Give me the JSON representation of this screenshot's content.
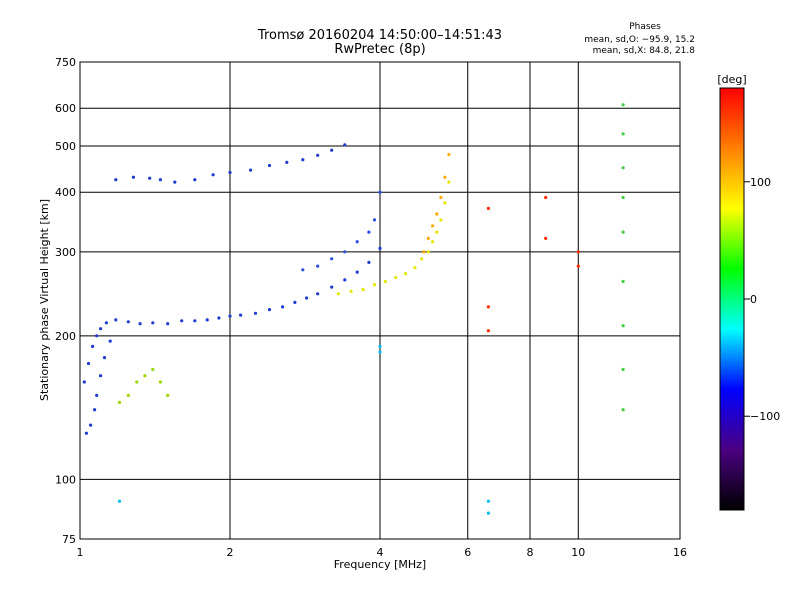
{
  "chart_data": {
    "type": "scatter",
    "title": "Tromsø 20160204 14:50:00–14:51:43",
    "subtitle": "RwPretec (8p)",
    "xlabel": "Frequency [MHz]",
    "ylabel": "Stationary phase Virtual Height [km]",
    "xscale": "log",
    "yscale": "log",
    "xlim": [
      1,
      16
    ],
    "ylim": [
      75,
      750
    ],
    "x_ticks": [
      1,
      2,
      4,
      6,
      8,
      10,
      16
    ],
    "x_tick_labels": [
      "1",
      "2",
      "4",
      "6",
      "8",
      "10",
      "16"
    ],
    "y_ticks": [
      75,
      100,
      200,
      300,
      400,
      500,
      600,
      750
    ],
    "y_tick_labels": [
      "75",
      "100",
      "200",
      "300",
      "400",
      "500",
      "600",
      "750"
    ],
    "grid": true,
    "phase_stats": {
      "heading": "Phases",
      "line_o": "mean, sd,O: −95.9, 15.2",
      "line_x": "mean, sd,X:  84.8, 21.8"
    },
    "colorbar": {
      "label": "[deg]",
      "range": [
        -180,
        180
      ],
      "ticks": [
        100,
        0,
        -100
      ],
      "tick_labels": [
        "100",
        "0",
        "−100"
      ],
      "colors": [
        "#ff0000",
        "#ff8000",
        "#ffff00",
        "#00ff00",
        "#00ffff",
        "#0000ff",
        "#4b0082",
        "#000000"
      ]
    },
    "series": [
      {
        "color": "#1e3cd2",
        "x": [
          1.18,
          1.28,
          1.38,
          1.45,
          1.55,
          1.7,
          1.85,
          2.0,
          2.2,
          2.4,
          2.6,
          2.8,
          3.0,
          3.2,
          3.4
        ],
        "y": [
          425,
          430,
          428,
          425,
          420,
          425,
          435,
          440,
          445,
          455,
          462,
          468,
          478,
          490,
          503
        ]
      },
      {
        "color": "#1e3cd2",
        "x": [
          1.02,
          1.04,
          1.06,
          1.08,
          1.1,
          1.13,
          1.18,
          1.25,
          1.32,
          1.4,
          1.5,
          1.6,
          1.7,
          1.8,
          1.9,
          2.0,
          2.1,
          2.25,
          2.4,
          2.55,
          2.7,
          2.85,
          3.0,
          3.2,
          3.4,
          3.6,
          3.8,
          4.0
        ],
        "y": [
          160,
          175,
          190,
          200,
          207,
          213,
          216,
          214,
          212,
          213,
          212,
          215,
          215,
          216,
          218,
          220,
          221,
          223,
          227,
          230,
          235,
          240,
          245,
          253,
          262,
          272,
          285,
          305
        ]
      },
      {
        "color": "#2a50e0",
        "x": [
          2.8,
          3.0,
          3.2,
          3.4,
          3.6,
          3.8,
          3.9,
          4.0
        ],
        "y": [
          275,
          280,
          290,
          300,
          315,
          330,
          350,
          400
        ]
      },
      {
        "color": "#e6e600",
        "x": [
          3.3,
          3.5,
          3.7,
          3.9,
          4.1,
          4.3,
          4.5,
          4.7,
          4.85,
          5.0,
          5.1,
          5.2,
          5.3,
          5.4,
          5.5
        ],
        "y": [
          245,
          248,
          250,
          256,
          260,
          265,
          270,
          278,
          290,
          300,
          315,
          330,
          350,
          380,
          420
        ]
      },
      {
        "color": "#ffaa00",
        "x": [
          4.9,
          5.0,
          5.1,
          5.2,
          5.3,
          5.4,
          5.5
        ],
        "y": [
          300,
          320,
          340,
          360,
          390,
          430,
          480
        ]
      },
      {
        "color": "#1e3cd2",
        "x": [
          1.03,
          1.05,
          1.07,
          1.08,
          1.1,
          1.12,
          1.15
        ],
        "y": [
          125,
          130,
          140,
          150,
          165,
          180,
          195
        ]
      },
      {
        "color": "#9bd600",
        "x": [
          1.2,
          1.25,
          1.3,
          1.35,
          1.4,
          1.45,
          1.5
        ],
        "y": [
          145,
          150,
          160,
          165,
          170,
          160,
          150
        ]
      },
      {
        "color": "#ff2a00",
        "x": [
          6.6,
          6.6,
          6.6,
          8.6,
          8.6,
          10.0,
          10.0
        ],
        "y": [
          370,
          230,
          205,
          390,
          320,
          300,
          280
        ]
      },
      {
        "color": "#44cc44",
        "x": [
          12.3,
          12.3,
          12.3,
          12.3,
          12.3,
          12.3,
          12.3,
          12.3,
          12.3
        ],
        "y": [
          610,
          530,
          450,
          390,
          330,
          260,
          210,
          170,
          140
        ]
      },
      {
        "color": "#00bbee",
        "x": [
          1.2,
          6.6,
          6.6,
          4.0,
          4.0
        ],
        "y": [
          90,
          90,
          85,
          190,
          185
        ]
      }
    ]
  }
}
